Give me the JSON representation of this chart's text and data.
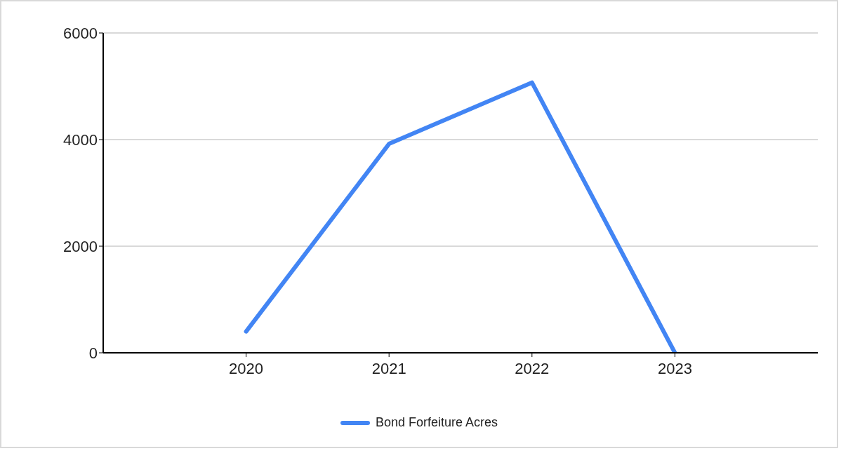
{
  "chart_data": {
    "type": "line",
    "x": [
      2020,
      2021,
      2022,
      2023
    ],
    "series": [
      {
        "name": "Bond Forfeiture Acres",
        "color": "#4285f4",
        "values": [
          400,
          3920,
          5070,
          0
        ]
      }
    ],
    "xlim": [
      2019,
      2024
    ],
    "xticks": [
      2020,
      2021,
      2022,
      2023
    ],
    "ylim": [
      0,
      6000
    ],
    "yticks": [
      0,
      2000,
      4000,
      6000
    ],
    "grid": "y",
    "legend": "bottom",
    "marker": "none",
    "line_style": "solid"
  }
}
